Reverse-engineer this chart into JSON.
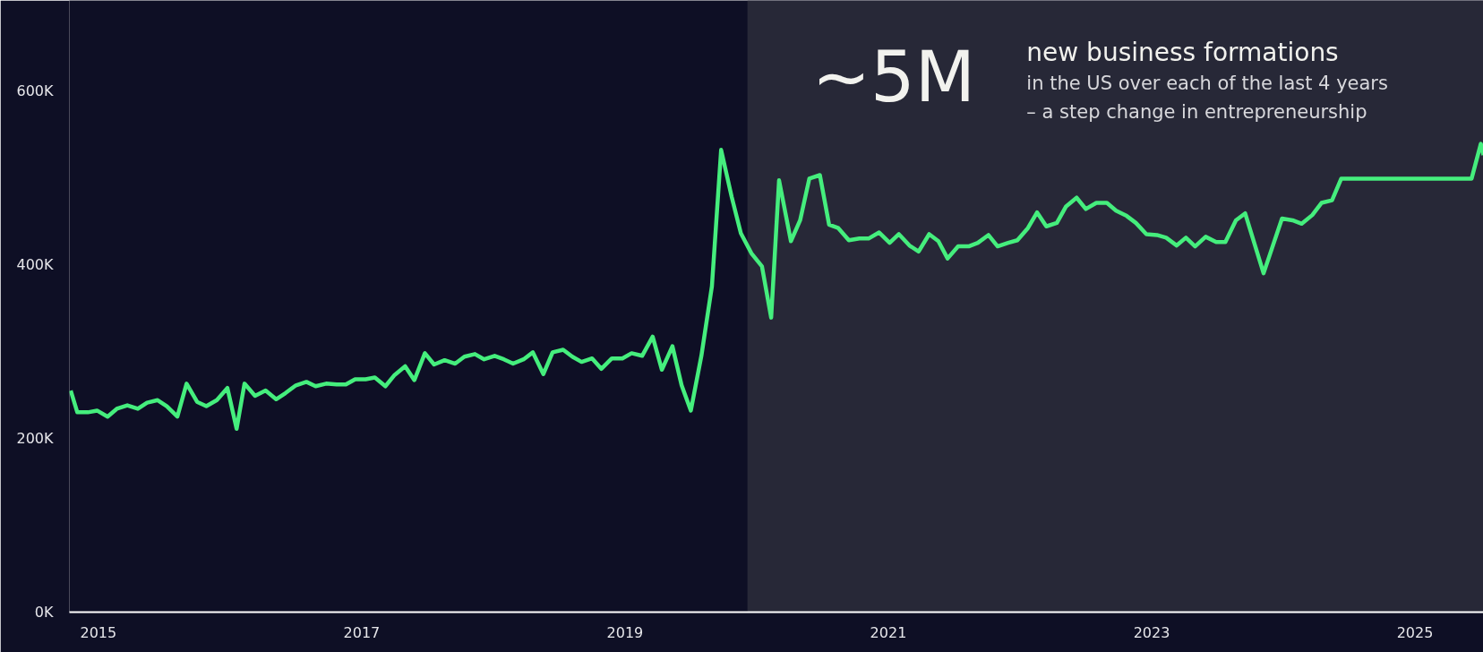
{
  "chart_data": {
    "type": "line",
    "x": [
      2014.79,
      2014.84,
      2014.92,
      2014.99,
      2015.07,
      2015.14,
      2015.22,
      2015.3,
      2015.37,
      2015.45,
      2015.52,
      2015.6,
      2015.67,
      2015.75,
      2015.82,
      2015.9,
      2015.98,
      2016.05,
      2016.11,
      2016.19,
      2016.27,
      2016.35,
      2016.42,
      2016.5,
      2016.58,
      2016.65,
      2016.73,
      2016.81,
      2016.88,
      2016.95,
      2017.03,
      2017.1,
      2017.18,
      2017.25,
      2017.33,
      2017.4,
      2017.48,
      2017.55,
      2017.63,
      2017.71,
      2017.78,
      2017.86,
      2017.93,
      2018.01,
      2018.08,
      2018.15,
      2018.23,
      2018.3,
      2018.38,
      2018.45,
      2018.53,
      2018.6,
      2018.67,
      2018.75,
      2018.82,
      2018.9,
      2018.98,
      2019.05,
      2019.13,
      2019.21,
      2019.28,
      2019.36,
      2019.43,
      2019.5,
      2019.58,
      2019.66,
      2019.73,
      2019.81,
      2019.88,
      2019.96,
      2020.04,
      2020.11,
      2020.17,
      2020.26,
      2020.33,
      2020.4,
      2020.48,
      2020.55,
      2020.62,
      2020.7,
      2020.78,
      2020.85,
      2020.93,
      2021.01,
      2021.08,
      2021.16,
      2021.23,
      2021.31,
      2021.38,
      2021.45,
      2021.53,
      2021.61,
      2021.68,
      2021.76,
      2021.83,
      2021.91,
      2021.98,
      2022.06,
      2022.13,
      2022.2,
      2022.28,
      2022.35,
      2022.43,
      2022.5,
      2022.58,
      2022.66,
      2022.73,
      2022.81,
      2022.88,
      2022.96,
      2023.04,
      2023.11,
      2023.19,
      2023.26,
      2023.33,
      2023.41,
      2023.49,
      2023.56,
      2023.64,
      2023.71,
      2023.85,
      2023.99,
      2024.07,
      2024.14,
      2024.22,
      2024.29,
      2024.37,
      2024.44,
      2024.52,
      2024.6,
      2024.67,
      2024.75,
      2024.82,
      2024.9,
      2024.97,
      2025.05,
      2025.12,
      2025.2,
      2025.27,
      2025.35,
      2025.43,
      2025.5,
      2025.52
    ],
    "series": [
      {
        "color": "#45ee7d",
        "values": [
          255000,
          230000,
          230000,
          232000,
          225000,
          234000,
          238000,
          234000,
          241000,
          244000,
          237000,
          225000,
          263000,
          242000,
          237000,
          244000,
          258000,
          211000,
          263000,
          249000,
          255000,
          245000,
          252000,
          261000,
          265000,
          260000,
          263000,
          262000,
          262000,
          268000,
          268000,
          270000,
          260000,
          273000,
          283000,
          267000,
          298000,
          285000,
          290000,
          286000,
          294000,
          297000,
          291000,
          295000,
          291000,
          286000,
          291000,
          299000,
          274000,
          299000,
          302000,
          294000,
          288000,
          292000,
          280000,
          292000,
          292000,
          298000,
          295000,
          317000,
          279000,
          306000,
          261000,
          232000,
          295000,
          375000,
          532000,
          478000,
          436000,
          413000,
          398000,
          339000,
          497000,
          427000,
          451000,
          499000,
          503000,
          446000,
          442000,
          428000,
          430000,
          430000,
          437000,
          425000,
          435000,
          422000,
          415000,
          435000,
          427000,
          407000,
          421000,
          421000,
          425000,
          434000,
          421000,
          425000,
          428000,
          442000,
          460000,
          444000,
          448000,
          467000,
          477000,
          464000,
          471000,
          471000,
          462000,
          456000,
          448000,
          435000,
          434000,
          431000,
          422000,
          431000,
          421000,
          432000,
          426000,
          426000,
          451000,
          459000,
          390000,
          453000,
          451000,
          447000,
          457000,
          471000,
          474000,
          499000,
          499000,
          499000,
          499000,
          499000,
          499000,
          499000,
          499000,
          499000,
          499000,
          499000,
          499000,
          499000,
          499000,
          539000,
          526000
        ]
      }
    ],
    "xlim": [
      2014.78,
      2025.52
    ],
    "ylim": [
      0,
      704000
    ],
    "xticks": [
      2015,
      2017,
      2019,
      2021,
      2023,
      2025
    ],
    "yticks": [
      {
        "value": 0,
        "label": "0K"
      },
      {
        "value": 200000,
        "label": "200K"
      },
      {
        "value": 400000,
        "label": "400K"
      },
      {
        "value": 600000,
        "label": "600K"
      }
    ],
    "grid": false,
    "bands": [
      {
        "axis": "x",
        "from": 2019.93,
        "to": 2025.52,
        "color": "#2c2d3b"
      }
    ],
    "annotations": [
      "~5M",
      "new business formations",
      "in the US over each of the last 4 years",
      "– a step change in entrepreneurship"
    ]
  }
}
